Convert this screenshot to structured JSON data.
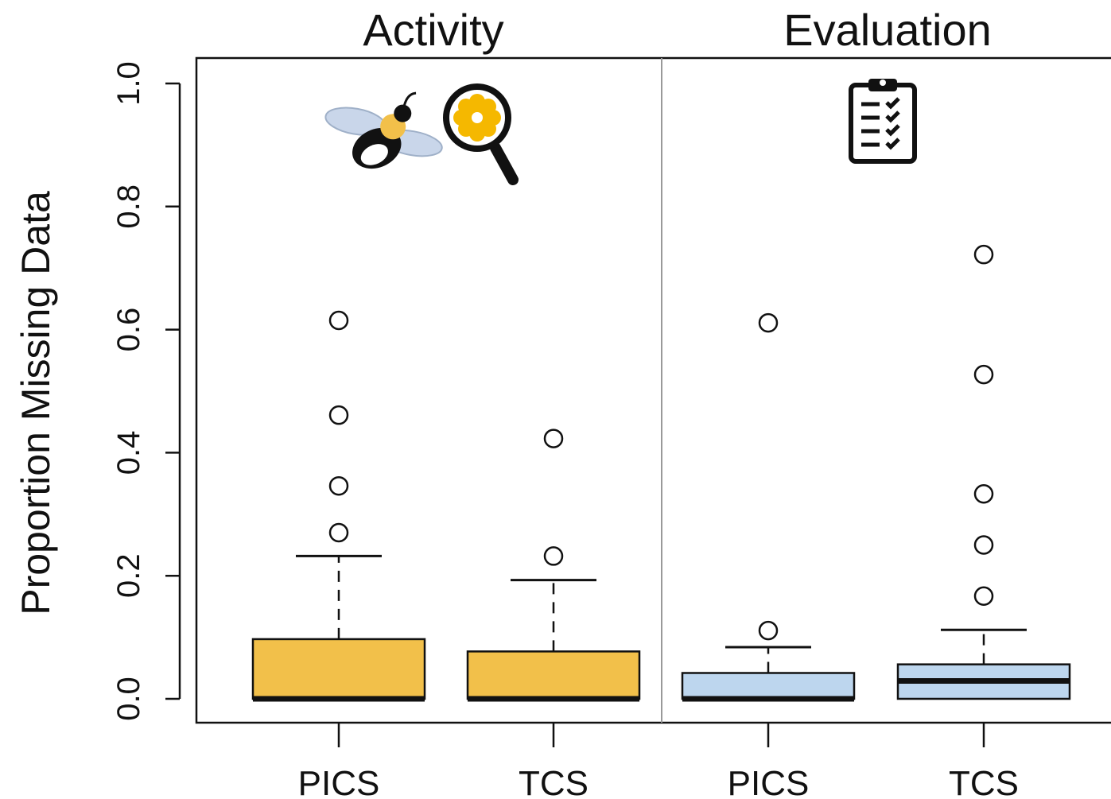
{
  "chart_data": {
    "type": "box",
    "ylabel": "Proportion Missing Data",
    "ylim": [
      0,
      1.0
    ],
    "yticks": [
      "0.0",
      "0.2",
      "0.4",
      "0.6",
      "0.8",
      "1.0"
    ],
    "panels": [
      {
        "title": "Activity",
        "icons": [
          "bee-icon",
          "magnifier-flower-icon"
        ],
        "boxes": [
          {
            "category": "PICS",
            "color": "#F2C04A",
            "min": 0.0,
            "q1": 0.0,
            "median": 0.0,
            "q3": 0.097,
            "whisker_high": 0.232,
            "outliers": [
              0.27,
              0.346,
              0.461,
              0.615
            ]
          },
          {
            "category": "TCS",
            "color": "#F2C04A",
            "min": 0.0,
            "q1": 0.0,
            "median": 0.0,
            "q3": 0.077,
            "whisker_high": 0.193,
            "outliers": [
              0.232,
              0.423
            ]
          }
        ]
      },
      {
        "title": "Evaluation",
        "icons": [
          "clipboard-checklist-icon"
        ],
        "boxes": [
          {
            "category": "PICS",
            "color": "#BDD6EE",
            "min": 0.0,
            "q1": 0.0,
            "median": 0.0,
            "q3": 0.042,
            "whisker_high": 0.084,
            "outliers": [
              0.111,
              0.611
            ]
          },
          {
            "category": "TCS",
            "color": "#BDD6EE",
            "min": 0.0,
            "q1": 0.0,
            "median": 0.029,
            "q3": 0.056,
            "whisker_high": 0.112,
            "outliers": [
              0.167,
              0.25,
              0.333,
              0.527,
              0.722
            ]
          }
        ]
      }
    ]
  }
}
